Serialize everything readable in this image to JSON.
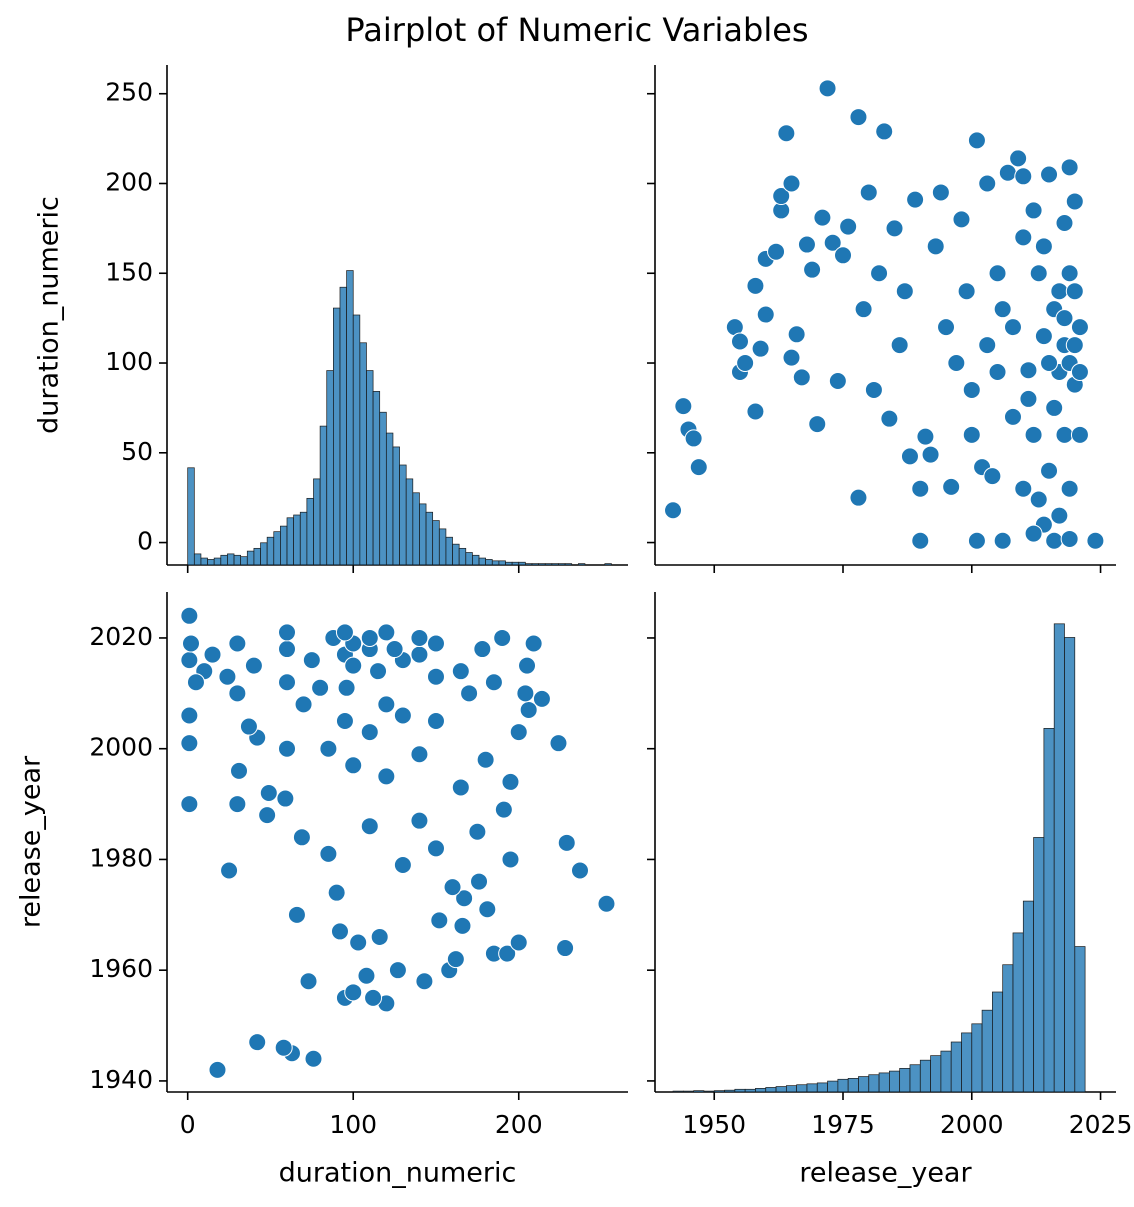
{
  "title": "Pairplot of Numeric Variables",
  "chart_data": [
    {
      "type": "histogram",
      "ylabel": "duration_numeric",
      "color": "#1f77b4",
      "xlim": [
        -12.5,
        266
      ],
      "ylim": [
        -12.5,
        266
      ],
      "count_lim": [
        0,
        360
      ],
      "yticks": [
        0,
        50,
        100,
        150,
        200,
        250
      ],
      "bins": [
        0,
        4,
        8,
        12,
        16,
        20,
        24,
        28,
        32,
        36,
        40,
        44,
        48,
        52,
        56,
        60,
        64,
        68,
        72,
        76,
        80,
        84,
        88,
        92,
        96,
        100,
        104,
        108,
        112,
        116,
        120,
        124,
        128,
        132,
        136,
        140,
        144,
        148,
        152,
        156,
        160,
        164,
        168,
        172,
        176,
        180,
        184,
        188,
        192,
        196,
        200,
        204,
        208,
        212,
        216,
        220,
        224,
        228,
        232,
        236,
        240,
        244,
        248,
        252,
        256
      ],
      "values": [
        70,
        8,
        5,
        4,
        5,
        7,
        8,
        7,
        6,
        10,
        12,
        16,
        20,
        24,
        28,
        34,
        36,
        38,
        48,
        62,
        100,
        140,
        185,
        200,
        212,
        180,
        160,
        140,
        125,
        110,
        95,
        85,
        72,
        62,
        52,
        44,
        38,
        32,
        26,
        20,
        15,
        12,
        9,
        7,
        5,
        4,
        3,
        3,
        2,
        2,
        2,
        1,
        1,
        1,
        1,
        1,
        1,
        1,
        0,
        1,
        0,
        0,
        0,
        1
      ]
    },
    {
      "type": "scatter",
      "color": "#1f77b4",
      "xlim": [
        1938.5,
        2028
      ],
      "ylim": [
        -12.5,
        266
      ],
      "x": [
        1942,
        1944,
        1945,
        1946,
        1947,
        1954,
        1955,
        1955,
        1956,
        1958,
        1958,
        1959,
        1960,
        1960,
        1962,
        1963,
        1963,
        1964,
        1965,
        1965,
        1966,
        1967,
        1968,
        1969,
        1970,
        1971,
        1972,
        1973,
        1974,
        1975,
        1976,
        1978,
        1978,
        1979,
        1980,
        1981,
        1982,
        1983,
        1984,
        1985,
        1986,
        1987,
        1988,
        1989,
        1990,
        1990,
        1991,
        1992,
        1993,
        1994,
        1995,
        1996,
        1997,
        1998,
        1999,
        2000,
        2001,
        2001,
        2002,
        2003,
        2004,
        2005,
        2006,
        2006,
        2007,
        2008,
        2009,
        2010,
        2011,
        2012,
        2013,
        2014,
        2015,
        2016,
        2017,
        2018,
        2019,
        2019,
        2020,
        2020,
        2021,
        2024,
        2012,
        2015,
        2017,
        2018,
        2019,
        2016,
        2013,
        2011,
        2010,
        2014,
        2018,
        2019,
        2020,
        2021,
        2017,
        2016,
        2015,
        2014,
        2018,
        2020,
        2021,
        2019,
        2012,
        2010,
        2008,
        2005,
        2003,
        2000
      ],
      "values": [
        18,
        76,
        63,
        58,
        42,
        120,
        112,
        95,
        100,
        73,
        143,
        108,
        127,
        158,
        162,
        185,
        193,
        228,
        200,
        103,
        116,
        92,
        166,
        152,
        66,
        181,
        253,
        167,
        90,
        160,
        176,
        25,
        237,
        130,
        195,
        85,
        150,
        229,
        69,
        175,
        110,
        140,
        48,
        191,
        1,
        30,
        59,
        49,
        165,
        195,
        120,
        31,
        100,
        180,
        140,
        85,
        224,
        1,
        42,
        200,
        37,
        150,
        1,
        130,
        206,
        70,
        214,
        204,
        96,
        185,
        24,
        115,
        205,
        1,
        95,
        178,
        209,
        2,
        88,
        190,
        120,
        1,
        60,
        40,
        140,
        110,
        100,
        130,
        150,
        80,
        30,
        10,
        60,
        150,
        110,
        95,
        15,
        75,
        100,
        165,
        125,
        140,
        60,
        30,
        5,
        170,
        120,
        95,
        110,
        60
      ]
    },
    {
      "type": "scatter",
      "xlabel": "duration_numeric",
      "ylabel": "release_year",
      "color": "#1f77b4",
      "xlim": [
        -12.5,
        266
      ],
      "ylim": [
        1938,
        2028.3
      ],
      "xticks": [
        0,
        100,
        200
      ],
      "yticks": [
        1940,
        1960,
        1980,
        2000,
        2020
      ],
      "x": [
        18,
        76,
        63,
        58,
        42,
        120,
        112,
        95,
        100,
        73,
        143,
        108,
        127,
        158,
        162,
        185,
        193,
        228,
        200,
        103,
        116,
        92,
        166,
        152,
        66,
        181,
        253,
        167,
        90,
        160,
        176,
        25,
        237,
        130,
        195,
        85,
        150,
        229,
        69,
        175,
        110,
        140,
        48,
        191,
        1,
        30,
        59,
        49,
        165,
        195,
        120,
        31,
        100,
        180,
        140,
        85,
        224,
        1,
        42,
        200,
        37,
        150,
        1,
        130,
        206,
        70,
        214,
        204,
        96,
        185,
        24,
        115,
        205,
        1,
        95,
        178,
        209,
        2,
        88,
        190,
        120,
        1,
        60,
        40,
        140,
        110,
        100,
        130,
        150,
        80,
        30,
        10,
        60,
        150,
        110,
        95,
        15,
        75,
        100,
        165,
        125,
        140,
        60,
        30,
        5,
        170,
        120,
        95,
        110,
        60
      ],
      "values": [
        1942,
        1944,
        1945,
        1946,
        1947,
        1954,
        1955,
        1955,
        1956,
        1958,
        1958,
        1959,
        1960,
        1960,
        1962,
        1963,
        1963,
        1964,
        1965,
        1965,
        1966,
        1967,
        1968,
        1969,
        1970,
        1971,
        1972,
        1973,
        1974,
        1975,
        1976,
        1978,
        1978,
        1979,
        1980,
        1981,
        1982,
        1983,
        1984,
        1985,
        1986,
        1987,
        1988,
        1989,
        1990,
        1990,
        1991,
        1992,
        1993,
        1994,
        1995,
        1996,
        1997,
        1998,
        1999,
        2000,
        2001,
        2001,
        2002,
        2003,
        2004,
        2005,
        2006,
        2006,
        2007,
        2008,
        2009,
        2010,
        2011,
        2012,
        2013,
        2014,
        2015,
        2016,
        2017,
        2018,
        2019,
        2019,
        2020,
        2020,
        2021,
        2024,
        2012,
        2015,
        2017,
        2018,
        2019,
        2016,
        2013,
        2011,
        2010,
        2014,
        2018,
        2019,
        2020,
        2021,
        2017,
        2016,
        2015,
        2014,
        2018,
        2020,
        2021,
        2019,
        2012,
        2010,
        2008,
        2005,
        2003,
        2000
      ]
    },
    {
      "type": "histogram",
      "xlabel": "release_year",
      "color": "#1f77b4",
      "xlim": [
        1938.5,
        2028
      ],
      "ylim": [
        1938,
        2028.3
      ],
      "count_lim": [
        0,
        1100
      ],
      "xticks": [
        1950,
        1975,
        2000,
        2025
      ],
      "bins": [
        1942,
        1944,
        1946,
        1948,
        1950,
        1952,
        1954,
        1956,
        1958,
        1960,
        1962,
        1964,
        1966,
        1968,
        1970,
        1972,
        1974,
        1976,
        1978,
        1980,
        1982,
        1984,
        1986,
        1988,
        1990,
        1992,
        1994,
        1996,
        1998,
        2000,
        2002,
        2004,
        2006,
        2008,
        2010,
        2012,
        2014,
        2016,
        2018,
        2020,
        2022
      ],
      "values": [
        2,
        2,
        3,
        2,
        3,
        4,
        6,
        6,
        8,
        10,
        12,
        14,
        16,
        18,
        20,
        24,
        28,
        30,
        34,
        38,
        42,
        46,
        52,
        60,
        70,
        80,
        90,
        110,
        130,
        150,
        180,
        220,
        280,
        350,
        420,
        560,
        800,
        1030,
        1000,
        320
      ]
    }
  ]
}
